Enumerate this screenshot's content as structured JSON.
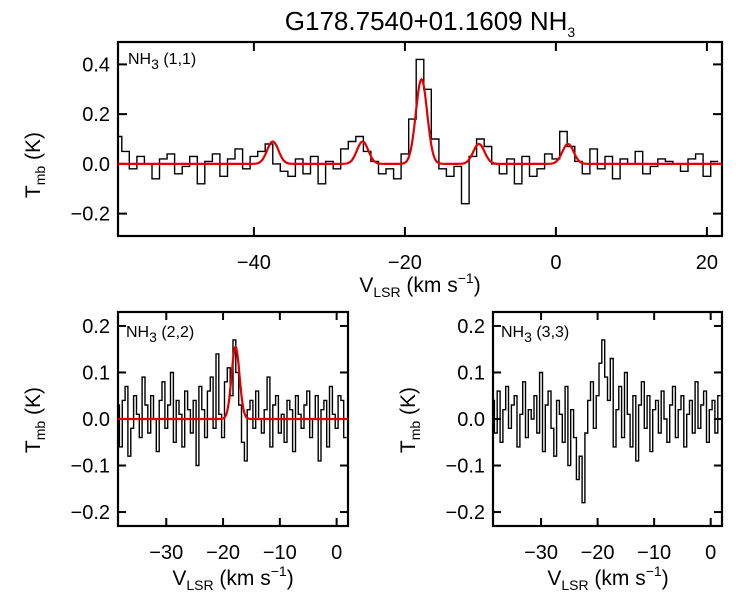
{
  "figure_title": {
    "main": "G178.7540+01.1609 NH",
    "sub": "3"
  },
  "colors": {
    "observed": "#000000",
    "fit": "#e00000"
  },
  "chart_data": [
    {
      "type": "line",
      "panel": "top",
      "label": {
        "pre": "NH",
        "sub": "3",
        "post": " (1,1)"
      },
      "xlabel": {
        "pre": "V",
        "sub": "LSR",
        "post": " (km s",
        "sup": "−1",
        "end": ")"
      },
      "ylabel": {
        "pre": "T",
        "sub": "mb",
        "post": " (K)"
      },
      "xlim": [
        -58,
        22
      ],
      "ylim": [
        -0.29,
        0.49
      ],
      "xticks": [
        -40,
        -20,
        0,
        20
      ],
      "xtick_labels": [
        "−40",
        "−20",
        "0",
        "20"
      ],
      "yticks": [
        -0.2,
        0.0,
        0.2,
        0.4
      ],
      "ytick_labels": [
        "−0.2",
        "0.0",
        "0.2",
        "0.4"
      ],
      "series": [
        {
          "name": "observed",
          "style": "steps",
          "x": [
            -58,
            -57,
            -56,
            -55,
            -54,
            -53,
            -52,
            -51,
            -50,
            -49,
            -48,
            -47,
            -46,
            -45,
            -44,
            -43,
            -42,
            -41,
            -40,
            -39,
            -38,
            -37,
            -36,
            -35,
            -34,
            -33,
            -32,
            -31,
            -30,
            -29,
            -28,
            -27,
            -26,
            -25,
            -24,
            -23,
            -22,
            -21,
            -20,
            -19,
            -18,
            -17,
            -16,
            -15,
            -14,
            -13,
            -12,
            -11,
            -10,
            -9,
            -8,
            -7,
            -6,
            -5,
            -4,
            -3,
            -2,
            -1,
            0,
            1,
            2,
            3,
            4,
            5,
            6,
            7,
            8,
            9,
            10,
            11,
            12,
            13,
            14,
            15,
            16,
            17,
            18,
            19,
            20,
            21
          ],
          "y": [
            0.11,
            0.05,
            -0.02,
            0.03,
            0.0,
            -0.06,
            0.02,
            0.04,
            -0.04,
            -0.01,
            0.03,
            -0.08,
            0.01,
            0.04,
            -0.05,
            0.02,
            0.06,
            -0.02,
            0.03,
            0.05,
            0.08,
            0.0,
            -0.03,
            -0.05,
            0.02,
            -0.04,
            0.03,
            -0.08,
            0.01,
            -0.02,
            0.06,
            0.09,
            0.11,
            0.05,
            0.01,
            -0.04,
            -0.02,
            -0.06,
            0.04,
            0.18,
            0.42,
            0.3,
            0.1,
            -0.02,
            -0.05,
            -0.01,
            -0.16,
            0.03,
            0.1,
            0.07,
            0.0,
            -0.04,
            0.02,
            -0.08,
            0.03,
            -0.05,
            -0.02,
            0.04,
            0.02,
            0.13,
            0.07,
            0.01,
            -0.04,
            0.06,
            -0.02,
            0.03,
            -0.06,
            0.02,
            0.0,
            0.05,
            -0.04,
            -0.01,
            0.02,
            0.01,
            0.0,
            -0.03,
            0.02,
            0.04,
            -0.05,
            0.01
          ]
        },
        {
          "name": "fit",
          "style": "line",
          "baseline": 0,
          "components": [
            {
              "center": -37.5,
              "amplitude": 0.09,
              "sigma": 0.75
            },
            {
              "center": -25.6,
              "amplitude": 0.09,
              "sigma": 0.75
            },
            {
              "center": -17.8,
              "amplitude": 0.34,
              "sigma": 0.75
            },
            {
              "center": -10.2,
              "amplitude": 0.08,
              "sigma": 0.75
            },
            {
              "center": 1.6,
              "amplitude": 0.08,
              "sigma": 0.75
            }
          ]
        }
      ]
    },
    {
      "type": "line",
      "panel": "bottom-left",
      "label": {
        "pre": "NH",
        "sub": "3",
        "post": " (2,2)"
      },
      "xlabel": {
        "pre": "V",
        "sub": "LSR",
        "post": " (km s",
        "sup": "−1",
        "end": ")"
      },
      "ylabel": {
        "pre": "T",
        "sub": "mb",
        "post": " (K)"
      },
      "xlim": [
        -38.5,
        2
      ],
      "ylim": [
        -0.23,
        0.23
      ],
      "xticks": [
        -30,
        -20,
        -10,
        0
      ],
      "xtick_labels": [
        "−30",
        "−20",
        "−10",
        "0"
      ],
      "yticks": [
        -0.2,
        -0.1,
        0.0,
        0.1,
        0.2
      ],
      "ytick_labels": [
        "−0.2",
        "−0.1",
        "0.0",
        "0.1",
        "0.2"
      ],
      "series": [
        {
          "name": "observed",
          "style": "steps",
          "x": [
            -38.5,
            -38,
            -37.5,
            -37,
            -36.5,
            -36,
            -35.5,
            -35,
            -34.5,
            -34,
            -33.5,
            -33,
            -32.5,
            -32,
            -31.5,
            -31,
            -30.5,
            -30,
            -29.5,
            -29,
            -28.5,
            -28,
            -27.5,
            -27,
            -26.5,
            -26,
            -25.5,
            -25,
            -24.5,
            -24,
            -23.5,
            -23,
            -22.5,
            -22,
            -21.5,
            -21,
            -20.5,
            -20,
            -19.5,
            -19,
            -18.5,
            -18,
            -17.5,
            -17,
            -16.5,
            -16,
            -15.5,
            -15,
            -14.5,
            -14,
            -13.5,
            -13,
            -12.5,
            -12,
            -11.5,
            -11,
            -10.5,
            -10,
            -9.5,
            -9,
            -8.5,
            -8,
            -7.5,
            -7,
            -6.5,
            -6,
            -5.5,
            -5,
            -4.5,
            -4,
            -3.5,
            -3,
            -2.5,
            -2,
            -1.5,
            -1,
            -0.5,
            0,
            0.5,
            1,
            1.5
          ],
          "y": [
            0.03,
            -0.06,
            0.04,
            0.07,
            -0.08,
            -0.02,
            0.05,
            0.01,
            -0.04,
            0.09,
            0.03,
            -0.03,
            0.05,
            0.0,
            -0.07,
            0.04,
            0.08,
            -0.02,
            0.03,
            0.1,
            -0.05,
            0.04,
            0.01,
            -0.06,
            0.06,
            0.02,
            -0.03,
            0.04,
            -0.1,
            0.07,
            0.02,
            -0.04,
            0.06,
            0.09,
            -0.02,
            0.14,
            0.01,
            -0.04,
            0.08,
            0.11,
            0.05,
            0.17,
            0.1,
            0.03,
            -0.05,
            -0.09,
            0.02,
            0.04,
            -0.02,
            0.06,
            0.0,
            -0.03,
            0.02,
            0.09,
            -0.06,
            0.03,
            0.05,
            -0.03,
            0.01,
            -0.05,
            0.04,
            0.02,
            -0.07,
            0.05,
            0.01,
            -0.02,
            0.03,
            0.06,
            -0.04,
            0.0,
            0.05,
            -0.09,
            0.02,
            0.04,
            -0.06,
            0.07,
            0.01,
            -0.02,
            0.05,
            0.04,
            -0.04
          ]
        },
        {
          "name": "fit",
          "style": "line",
          "baseline": 0,
          "components": [
            {
              "center": -17.8,
              "amplitude": 0.155,
              "sigma": 0.7
            }
          ]
        }
      ]
    },
    {
      "type": "line",
      "panel": "bottom-right",
      "label": {
        "pre": "NH",
        "sub": "3",
        "post": " (3,3)"
      },
      "xlabel": {
        "pre": "V",
        "sub": "LSR",
        "post": " (km s",
        "sup": "−1",
        "end": ")"
      },
      "ylabel": {
        "pre": "T",
        "sub": "mb",
        "post": " (K)"
      },
      "xlim": [
        -38.5,
        2
      ],
      "ylim": [
        -0.23,
        0.23
      ],
      "xticks": [
        -30,
        -20,
        -10,
        0
      ],
      "xtick_labels": [
        "−30",
        "−20",
        "−10",
        "0"
      ],
      "yticks": [
        -0.2,
        -0.1,
        0.0,
        0.1,
        0.2
      ],
      "ytick_labels": [
        "−0.2",
        "−0.1",
        "0.0",
        "0.1",
        "0.2"
      ],
      "series": [
        {
          "name": "observed",
          "style": "steps",
          "x": [
            -38.5,
            -38,
            -37.5,
            -37,
            -36.5,
            -36,
            -35.5,
            -35,
            -34.5,
            -34,
            -33.5,
            -33,
            -32.5,
            -32,
            -31.5,
            -31,
            -30.5,
            -30,
            -29.5,
            -29,
            -28.5,
            -28,
            -27.5,
            -27,
            -26.5,
            -26,
            -25.5,
            -25,
            -24.5,
            -24,
            -23.5,
            -23,
            -22.5,
            -22,
            -21.5,
            -21,
            -20.5,
            -20,
            -19.5,
            -19,
            -18.5,
            -18,
            -17.5,
            -17,
            -16.5,
            -16,
            -15.5,
            -15,
            -14.5,
            -14,
            -13.5,
            -13,
            -12.5,
            -12,
            -11.5,
            -11,
            -10.5,
            -10,
            -9.5,
            -9,
            -8.5,
            -8,
            -7.5,
            -7,
            -6.5,
            -6,
            -5.5,
            -5,
            -4.5,
            -4,
            -3.5,
            -3,
            -2.5,
            -2,
            -1.5,
            -1,
            -0.5,
            0,
            0.5,
            1,
            1.5
          ],
          "y": [
            0.04,
            -0.03,
            0.06,
            -0.05,
            0.02,
            0.07,
            -0.02,
            0.03,
            0.05,
            -0.06,
            0.01,
            0.08,
            -0.04,
            0.02,
            0.0,
            0.05,
            -0.03,
            0.1,
            -0.07,
            0.03,
            0.06,
            -0.02,
            -0.08,
            0.04,
            0.01,
            -0.05,
            0.07,
            -0.1,
            0.02,
            -0.04,
            -0.13,
            -0.08,
            -0.18,
            -0.03,
            0.04,
            0.08,
            -0.02,
            0.05,
            0.12,
            0.17,
            0.09,
            0.04,
            0.13,
            -0.06,
            0.02,
            0.07,
            -0.04,
            0.1,
            0.01,
            -0.06,
            0.05,
            -0.09,
            0.03,
            0.08,
            -0.02,
            0.05,
            -0.07,
            0.02,
            0.04,
            -0.03,
            0.06,
            0.0,
            -0.05,
            0.03,
            0.07,
            -0.04,
            0.02,
            0.05,
            -0.06,
            0.01,
            0.04,
            -0.03,
            0.08,
            -0.02,
            0.03,
            0.06,
            -0.05,
            0.02,
            0.04,
            -0.03,
            0.05
          ]
        }
      ]
    }
  ]
}
